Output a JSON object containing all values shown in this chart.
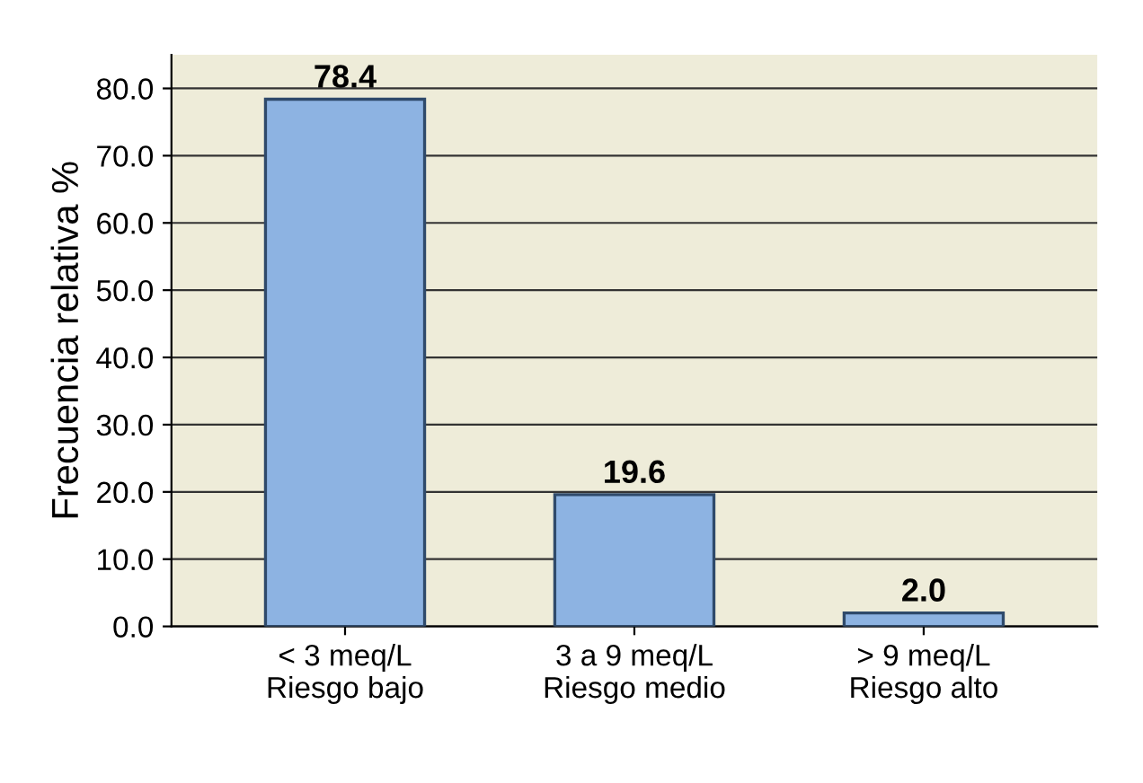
{
  "chart_data": {
    "type": "bar",
    "ylabel": "Frecuencia relativa %",
    "categories": [
      "< 3 meq/L\nRiesgo bajo",
      "3 a 9 meq/L\nRiesgo medio",
      "> 9 meq/L\nRiesgo alto"
    ],
    "values": [
      78.4,
      19.6,
      2.0
    ],
    "color": "#8db3e2",
    "value_labels": [
      "78.4",
      "19.6",
      "2.0"
    ],
    "ylim": [
      0,
      85
    ],
    "yticks": [
      {
        "value": 0,
        "label": "0.0"
      },
      {
        "value": 10,
        "label": "10.0"
      },
      {
        "value": 20,
        "label": "20.0"
      },
      {
        "value": 30,
        "label": "30.0"
      },
      {
        "value": 40,
        "label": "40.0"
      },
      {
        "value": 50,
        "label": "50.0"
      },
      {
        "value": 60,
        "label": "60.0"
      },
      {
        "value": 70,
        "label": "70.0"
      },
      {
        "value": 80,
        "label": "80.0"
      }
    ],
    "grid": "y",
    "legend": false
  }
}
